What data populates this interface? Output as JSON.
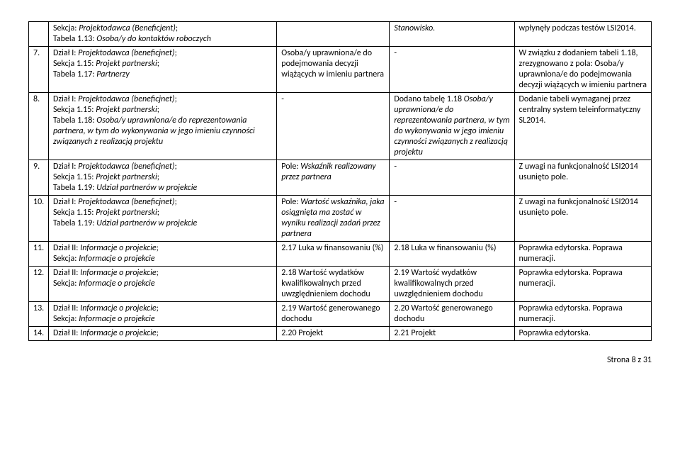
{
  "rows": [
    {
      "num": "",
      "a": "Sekcja: <i>Projektodawca (Beneficjent)</i>;<br>Tabela 1.13: <i>Osoba/y do kontaktów roboczych</i>",
      "b": "",
      "c": "<i>Stanowisko.</i>",
      "d": "wpłynęły podczas testów LSI2014."
    },
    {
      "num": "7.",
      "a": "Dział I: <i>Projektodawca (beneficjnet)</i>;<br>Sekcja 1.15: <i>Projekt partnerski</i>;<br>Tabela 1.17: <i>Partnerzy</i>",
      "b": "Osoba/y uprawniona/e do podejmowania decyzji wiążących w imieniu partnera",
      "c": "-",
      "d": "W związku z dodaniem tabeli 1.18, zrezygnowano z pola: Osoba/y uprawniona/e do podejmowania decyzji wiążących w imieniu partnera"
    },
    {
      "num": "8.",
      "a": "Dział I: <i>Projektodawca (beneficjnet)</i>;<br>Sekcja 1.15: <i>Projekt partnerski</i>;<br>Tabela 1.18: <i>Osoba/y uprawniona/e do reprezentowania partnera, w tym do wykonywania w jego imieniu czynności związanych z realizacją projektu</i>",
      "b": "-",
      "c": "Dodano tabelę 1.18 <i>Osoba/y uprawniona/e do reprezentowania partnera, w tym do wykonywania w jego imieniu czynności związanych z realizacją projektu</i>",
      "d": "Dodanie tabeli wymaganej przez centralny system teleinformatyczny SL2014."
    },
    {
      "num": "9.",
      "a": "Dział I: <i>Projektodawca (beneficjnet)</i>;<br>Sekcja 1.15: <i>Projekt partnerski</i>;<br>Tabela 1.19: <i>Udział partnerów w projekcie</i>",
      "b": "Pole: <i>Wskaźnik realizowany przez partnera</i>",
      "c": "-",
      "d": "Z uwagi na funkcjonalność LSI2014 usunięto pole."
    },
    {
      "num": "10.",
      "a": "Dział I: <i>Projektodawca (beneficjnet)</i>;<br>Sekcja 1.15: <i>Projekt partnerski</i>;<br>Tabela 1.19: <i>Udział partnerów w projekcie</i>",
      "b": "Pole: <i>Wartość wskaźnika, jaka osiągnięta ma zostać w wyniku realizacji zadań przez partnera</i>",
      "c": "-",
      "d": "Z uwagi na funkcjonalność LSI2014 usunięto pole."
    },
    {
      "num": "11.",
      "a": "Dział II: <i>Informacje o projekcie</i>;<br>Sekcja: <i>Informacje o projekcie</i>",
      "b": "2.17 Luka w finansowaniu (%)",
      "c": "2.18 Luka w finansowaniu (%)",
      "d": "Poprawka edytorska. Poprawa numeracji."
    },
    {
      "num": "12.",
      "a": "Dział II: <i>Informacje o projekcie</i>;<br>Sekcja: <i>Informacje o projekcie</i>",
      "b": "2.18 Wartość wydatków kwalifikowalnych przed uwzględnieniem dochodu",
      "c": "2.19 Wartość wydatków kwalifikowalnych przed uwzględnieniem dochodu",
      "d": "Poprawka edytorska. Poprawa numeracji."
    },
    {
      "num": "13.",
      "a": "Dział II: <i>Informacje o projekcie</i>;<br>Sekcja: <i>Informacje o projekcie</i>",
      "b": "2.19 Wartość generowanego dochodu",
      "c": "2.20 Wartość generowanego dochodu",
      "d": "Poprawka edytorska. Poprawa numeracji."
    },
    {
      "num": "14.",
      "a": "Dział II: <i>Informacje o projekcie</i>;",
      "b": "2.20 Projekt",
      "c": "2.21 Projekt",
      "d": "Poprawka edytorska."
    }
  ],
  "footer": "Strona 8 z 31"
}
